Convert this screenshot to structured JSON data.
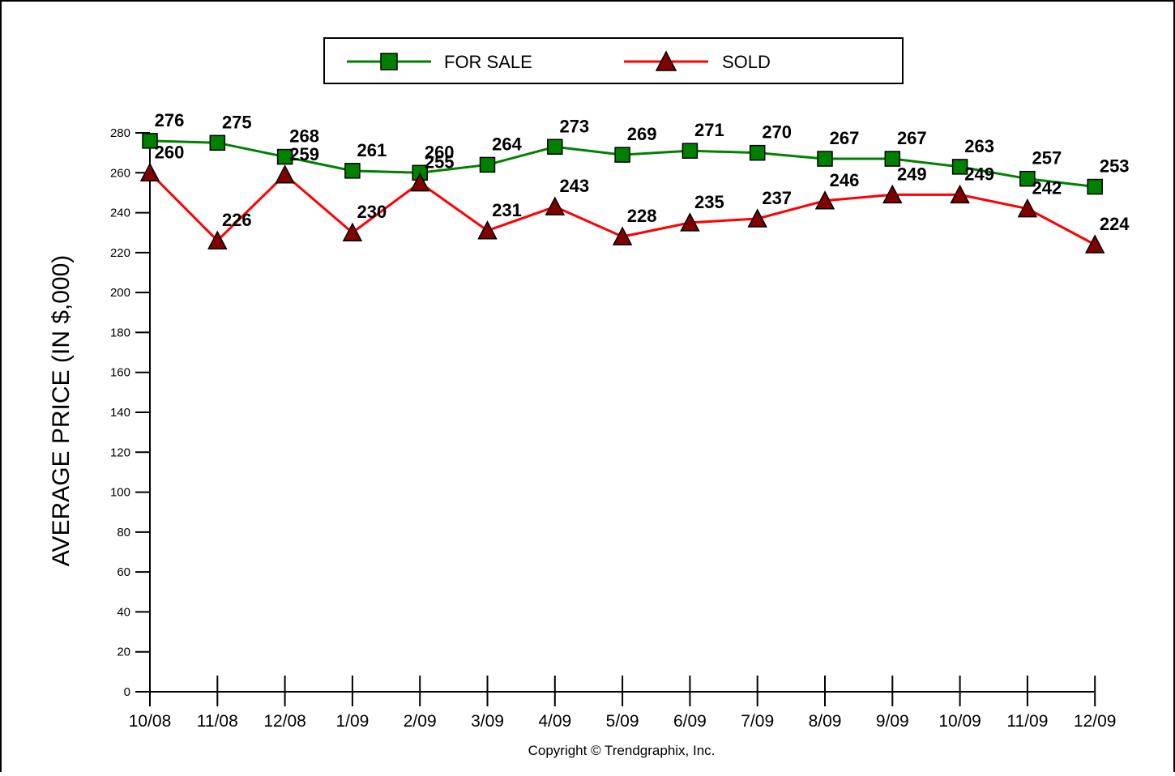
{
  "chart_data": {
    "type": "line",
    "categories": [
      "10/08",
      "11/08",
      "12/08",
      "1/09",
      "2/09",
      "3/09",
      "4/09",
      "5/09",
      "6/09",
      "7/09",
      "8/09",
      "9/09",
      "10/09",
      "11/09",
      "12/09"
    ],
    "series": [
      {
        "name": "FOR SALE",
        "color": "#008000",
        "marker_fill": "#008000",
        "marker": "square",
        "values": [
          276,
          275,
          268,
          261,
          260,
          264,
          273,
          269,
          271,
          270,
          267,
          267,
          263,
          257,
          253
        ]
      },
      {
        "name": "SOLD",
        "color": "#ff0000",
        "marker_fill": "#800000",
        "marker": "triangle",
        "values": [
          260,
          226,
          259,
          230,
          255,
          231,
          243,
          228,
          235,
          237,
          246,
          249,
          249,
          242,
          224
        ]
      }
    ],
    "ylabel": "AVERAGE PRICE (IN $,000)",
    "xlabel": "",
    "ylim": [
      0,
      280
    ],
    "yticks": [
      0,
      20,
      40,
      60,
      80,
      100,
      120,
      140,
      160,
      180,
      200,
      220,
      240,
      260,
      280
    ],
    "grid": false,
    "legend_position": "top-center"
  },
  "footer": {
    "copyright": "Copyright © Trendgraphix, Inc."
  }
}
